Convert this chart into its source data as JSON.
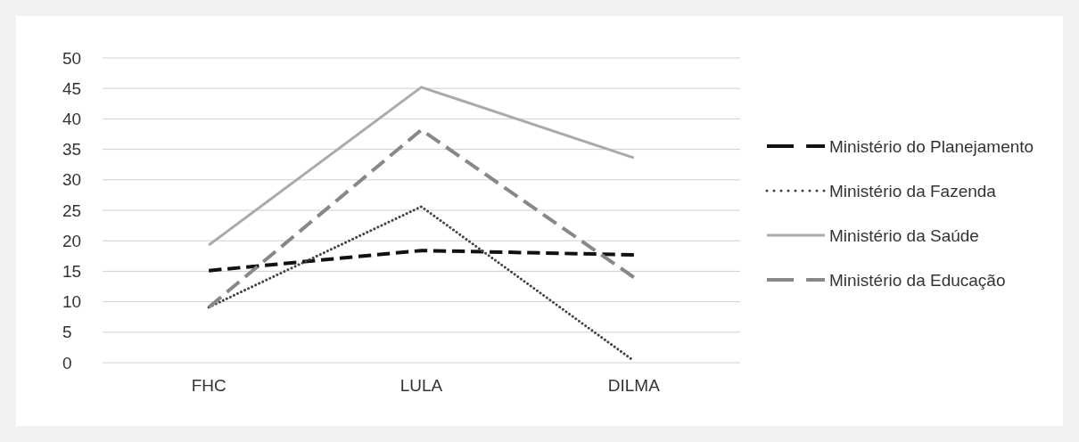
{
  "chart_data": {
    "type": "line",
    "categories": [
      "FHC",
      "LULA",
      "DILMA"
    ],
    "series": [
      {
        "name": "Ministério do Planejamento",
        "color": "#111111",
        "line_style": "dashed",
        "values": [
          15.1,
          18.4,
          17.7
        ]
      },
      {
        "name": "Ministério da Fazenda",
        "color": "#444444",
        "line_style": "dotted",
        "values": [
          9.1,
          25.6,
          0.3
        ]
      },
      {
        "name": "Ministério da Saúde",
        "color": "#aaaaaa",
        "line_style": "solid",
        "values": [
          19.3,
          45.2,
          33.6
        ]
      },
      {
        "name": "Ministério da Educação",
        "color": "#888888",
        "line_style": "dashed",
        "values": [
          9.1,
          38.2,
          14.0
        ]
      }
    ],
    "ylim": [
      0,
      50
    ],
    "yticks": [
      0,
      5,
      10,
      15,
      20,
      25,
      30,
      35,
      40,
      45,
      50
    ],
    "grid": "y",
    "legend": "right",
    "marker": "none"
  }
}
